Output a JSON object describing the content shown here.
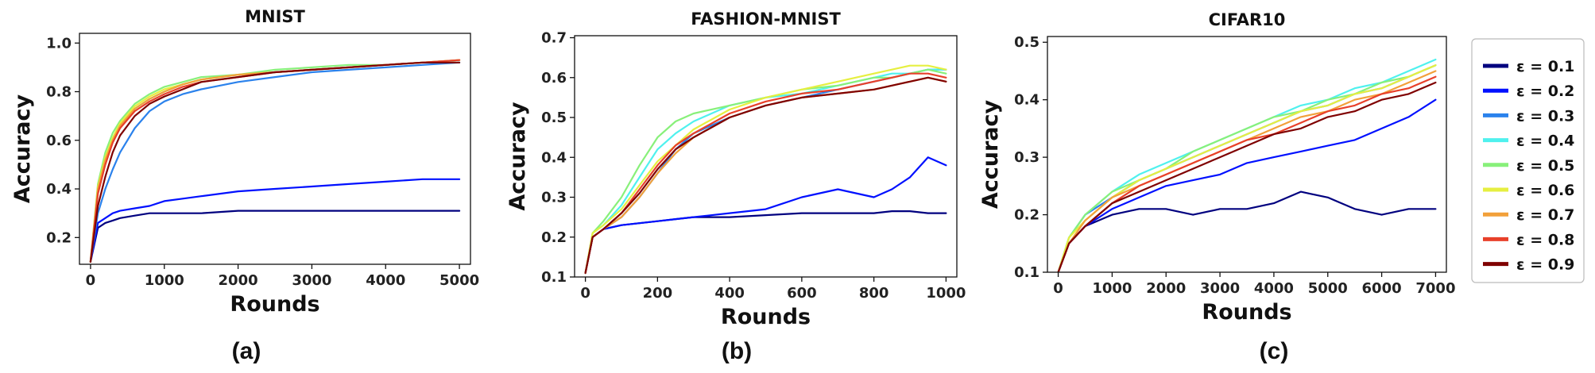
{
  "legend": [
    {
      "label": "ε = 0.1",
      "color": "#00007f"
    },
    {
      "label": "ε = 0.2",
      "color": "#0010ff"
    },
    {
      "label": "ε = 0.3",
      "color": "#2b82ec"
    },
    {
      "label": "ε = 0.4",
      "color": "#4ff1ee"
    },
    {
      "label": "ε = 0.5",
      "color": "#88f07a"
    },
    {
      "label": "ε = 0.6",
      "color": "#e6ef40"
    },
    {
      "label": "ε = 0.7",
      "color": "#f2a03a"
    },
    {
      "label": "ε = 0.8",
      "color": "#e8402a"
    },
    {
      "label": "ε = 0.9",
      "color": "#7f0000"
    }
  ],
  "chart_data": [
    {
      "type": "line",
      "title": "MNIST",
      "panel_label": "(a)",
      "xlabel": "Rounds",
      "ylabel": "Accuracy",
      "xlim": [
        -150,
        5150
      ],
      "ylim": [
        0.09,
        1.04
      ],
      "xticks": [
        0,
        1000,
        2000,
        3000,
        4000,
        5000
      ],
      "yticks": [
        0.2,
        0.4,
        0.6,
        0.8,
        1.0
      ],
      "ytick_labels": [
        "0.2",
        "0.4",
        "0.6",
        "0.8",
        "1.0"
      ],
      "x": [
        0,
        100,
        200,
        300,
        400,
        600,
        800,
        1000,
        1250,
        1500,
        2000,
        2500,
        3000,
        3500,
        4000,
        4500,
        5000
      ],
      "series": [
        {
          "values": [
            0.1,
            0.24,
            0.26,
            0.27,
            0.28,
            0.29,
            0.3,
            0.3,
            0.3,
            0.3,
            0.31,
            0.31,
            0.31,
            0.31,
            0.31,
            0.31,
            0.31
          ]
        },
        {
          "values": [
            0.1,
            0.26,
            0.28,
            0.3,
            0.31,
            0.32,
            0.33,
            0.35,
            0.36,
            0.37,
            0.39,
            0.4,
            0.41,
            0.42,
            0.43,
            0.44,
            0.44
          ]
        },
        {
          "values": [
            0.1,
            0.3,
            0.4,
            0.48,
            0.55,
            0.65,
            0.72,
            0.76,
            0.79,
            0.81,
            0.84,
            0.86,
            0.88,
            0.89,
            0.9,
            0.91,
            0.92
          ]
        },
        {
          "values": [
            0.1,
            0.4,
            0.52,
            0.6,
            0.66,
            0.73,
            0.77,
            0.8,
            0.83,
            0.85,
            0.87,
            0.88,
            0.89,
            0.9,
            0.91,
            0.92,
            0.92
          ]
        },
        {
          "values": [
            0.1,
            0.42,
            0.55,
            0.63,
            0.68,
            0.75,
            0.79,
            0.82,
            0.84,
            0.86,
            0.87,
            0.89,
            0.9,
            0.91,
            0.91,
            0.92,
            0.93
          ]
        },
        {
          "values": [
            0.1,
            0.41,
            0.53,
            0.61,
            0.67,
            0.74,
            0.78,
            0.81,
            0.83,
            0.85,
            0.87,
            0.88,
            0.89,
            0.9,
            0.91,
            0.92,
            0.93
          ]
        },
        {
          "values": [
            0.1,
            0.4,
            0.52,
            0.6,
            0.66,
            0.73,
            0.77,
            0.8,
            0.83,
            0.85,
            0.87,
            0.88,
            0.89,
            0.9,
            0.91,
            0.92,
            0.93
          ]
        },
        {
          "values": [
            0.1,
            0.38,
            0.5,
            0.59,
            0.65,
            0.72,
            0.76,
            0.79,
            0.82,
            0.84,
            0.86,
            0.88,
            0.89,
            0.9,
            0.91,
            0.92,
            0.93
          ]
        },
        {
          "values": [
            0.1,
            0.33,
            0.45,
            0.55,
            0.62,
            0.7,
            0.75,
            0.78,
            0.81,
            0.84,
            0.86,
            0.88,
            0.89,
            0.9,
            0.91,
            0.92,
            0.92
          ]
        }
      ]
    },
    {
      "type": "line",
      "title": "FASHION-MNIST",
      "panel_label": "(b)",
      "xlabel": "Rounds",
      "ylabel": "Accuracy",
      "xlim": [
        -30,
        1030
      ],
      "ylim": [
        0.1,
        0.705
      ],
      "xticks": [
        0,
        200,
        400,
        600,
        800,
        1000
      ],
      "yticks": [
        0.1,
        0.2,
        0.3,
        0.4,
        0.5,
        0.6,
        0.7
      ],
      "ytick_labels": [
        "0.1",
        "0.2",
        "0.3",
        "0.4",
        "0.5",
        "0.6",
        "0.7"
      ],
      "x": [
        0,
        20,
        50,
        100,
        150,
        200,
        250,
        300,
        400,
        500,
        600,
        700,
        800,
        850,
        900,
        950,
        1000
      ],
      "series": [
        {
          "values": [
            0.11,
            0.2,
            0.22,
            0.23,
            0.235,
            0.24,
            0.245,
            0.25,
            0.25,
            0.255,
            0.26,
            0.26,
            0.26,
            0.265,
            0.265,
            0.26,
            0.26
          ]
        },
        {
          "values": [
            0.11,
            0.2,
            0.22,
            0.23,
            0.235,
            0.24,
            0.245,
            0.25,
            0.26,
            0.27,
            0.3,
            0.32,
            0.3,
            0.32,
            0.35,
            0.4,
            0.38
          ]
        },
        {
          "values": [
            0.11,
            0.2,
            0.22,
            0.25,
            0.3,
            0.36,
            0.42,
            0.46,
            0.5,
            0.53,
            0.55,
            0.57,
            0.59,
            0.6,
            0.61,
            0.62,
            0.62
          ]
        },
        {
          "values": [
            0.11,
            0.21,
            0.23,
            0.28,
            0.35,
            0.42,
            0.46,
            0.49,
            0.53,
            0.55,
            0.56,
            0.58,
            0.6,
            0.61,
            0.61,
            0.62,
            0.62
          ]
        },
        {
          "values": [
            0.11,
            0.21,
            0.24,
            0.3,
            0.38,
            0.45,
            0.49,
            0.51,
            0.53,
            0.55,
            0.57,
            0.58,
            0.6,
            0.6,
            0.61,
            0.62,
            0.61
          ]
        },
        {
          "values": [
            0.11,
            0.21,
            0.23,
            0.27,
            0.33,
            0.39,
            0.43,
            0.47,
            0.52,
            0.55,
            0.57,
            0.59,
            0.61,
            0.62,
            0.63,
            0.63,
            0.62
          ]
        },
        {
          "values": [
            0.11,
            0.2,
            0.22,
            0.25,
            0.3,
            0.36,
            0.41,
            0.45,
            0.5,
            0.53,
            0.55,
            0.56,
            0.57,
            0.58,
            0.59,
            0.6,
            0.59
          ]
        },
        {
          "values": [
            0.11,
            0.2,
            0.22,
            0.26,
            0.32,
            0.38,
            0.43,
            0.46,
            0.51,
            0.54,
            0.56,
            0.57,
            0.59,
            0.6,
            0.61,
            0.61,
            0.6
          ]
        },
        {
          "values": [
            0.11,
            0.2,
            0.22,
            0.26,
            0.31,
            0.37,
            0.42,
            0.45,
            0.5,
            0.53,
            0.55,
            0.56,
            0.57,
            0.58,
            0.59,
            0.6,
            0.59
          ]
        }
      ]
    },
    {
      "type": "line",
      "title": "CIFAR10",
      "panel_label": "(c)",
      "xlabel": "Rounds",
      "ylabel": "Accuracy",
      "xlim": [
        -200,
        7200
      ],
      "ylim": [
        0.1,
        0.51
      ],
      "xticks": [
        0,
        1000,
        2000,
        3000,
        4000,
        5000,
        6000,
        7000
      ],
      "yticks": [
        0.1,
        0.2,
        0.3,
        0.4,
        0.5
      ],
      "ytick_labels": [
        "0.1",
        "0.2",
        "0.3",
        "0.4",
        "0.5"
      ],
      "x": [
        0,
        200,
        500,
        1000,
        1500,
        2000,
        2500,
        3000,
        3500,
        4000,
        4500,
        5000,
        5500,
        6000,
        6500,
        7000
      ],
      "series": [
        {
          "values": [
            0.1,
            0.15,
            0.18,
            0.2,
            0.21,
            0.21,
            0.2,
            0.21,
            0.21,
            0.22,
            0.24,
            0.23,
            0.21,
            0.2,
            0.21,
            0.21
          ]
        },
        {
          "values": [
            0.1,
            0.15,
            0.18,
            0.21,
            0.23,
            0.25,
            0.26,
            0.27,
            0.29,
            0.3,
            0.31,
            0.32,
            0.33,
            0.35,
            0.37,
            0.4
          ]
        },
        {
          "values": [
            0.1,
            0.16,
            0.2,
            0.23,
            0.26,
            0.28,
            0.3,
            0.32,
            0.34,
            0.36,
            0.38,
            0.39,
            0.41,
            0.42,
            0.44,
            0.46
          ]
        },
        {
          "values": [
            0.1,
            0.16,
            0.2,
            0.24,
            0.27,
            0.29,
            0.31,
            0.33,
            0.35,
            0.37,
            0.39,
            0.4,
            0.42,
            0.43,
            0.45,
            0.47
          ]
        },
        {
          "values": [
            0.1,
            0.16,
            0.2,
            0.24,
            0.26,
            0.28,
            0.31,
            0.33,
            0.35,
            0.37,
            0.38,
            0.4,
            0.41,
            0.43,
            0.44,
            0.46
          ]
        },
        {
          "values": [
            0.1,
            0.16,
            0.19,
            0.23,
            0.26,
            0.28,
            0.3,
            0.32,
            0.34,
            0.36,
            0.38,
            0.39,
            0.41,
            0.42,
            0.44,
            0.46
          ]
        },
        {
          "values": [
            0.1,
            0.15,
            0.19,
            0.23,
            0.25,
            0.27,
            0.29,
            0.31,
            0.33,
            0.35,
            0.37,
            0.38,
            0.4,
            0.41,
            0.43,
            0.45
          ]
        },
        {
          "values": [
            0.1,
            0.15,
            0.18,
            0.22,
            0.25,
            0.27,
            0.29,
            0.31,
            0.33,
            0.34,
            0.36,
            0.38,
            0.39,
            0.41,
            0.42,
            0.44
          ]
        },
        {
          "values": [
            0.1,
            0.15,
            0.18,
            0.22,
            0.24,
            0.26,
            0.28,
            0.3,
            0.32,
            0.34,
            0.35,
            0.37,
            0.38,
            0.4,
            0.41,
            0.43
          ]
        }
      ]
    }
  ]
}
